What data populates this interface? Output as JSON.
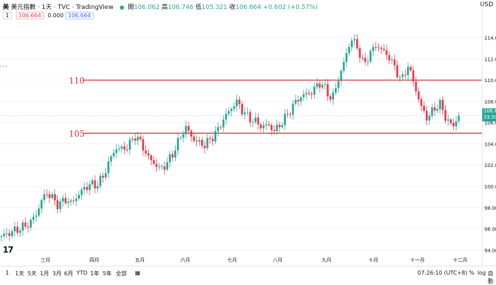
{
  "header": {
    "symbol": "美",
    "title": "美元指數 · 1天 · TVC · TradingView",
    "open_label": "開",
    "open": "106.062",
    "high_label": "高",
    "high": "106.746",
    "low_label": "低",
    "low": "105.321",
    "close_label": "收",
    "close": "106.664",
    "change": "+0.602 (+0.57%)",
    "currency": "USD"
  },
  "indicator": {
    "number": "1",
    "value_a": "106.664",
    "value_b": "0.000",
    "value_c": "106.664"
  },
  "price_tag": {
    "price": "106.6",
    "countdown": "33:50"
  },
  "bottom": {
    "timeframes": [
      "1",
      "1天",
      "5天",
      "1月",
      "3月",
      "6月",
      "YTD",
      "1年",
      "5年",
      "全部"
    ],
    "time": "07:26:10 (UTC+8)",
    "percent": "%",
    "log": "log",
    "auto": "自動"
  },
  "colors": {
    "up": "#26a69a",
    "down": "#f23645",
    "level": "#d32f2f"
  },
  "chart_data": {
    "type": "candlestick",
    "y_ticks": [
      94.0,
      96.0,
      98.0,
      100.0,
      102.0,
      104.0,
      106.0,
      108.0,
      110.0,
      112.0,
      114.0
    ],
    "y_tick_labels": [
      "94.00",
      "96.00",
      "98.00",
      "100.00",
      "102.00",
      "104.00",
      "106.00",
      "108.00",
      "110.00",
      "112.00",
      "114.00"
    ],
    "ylim": [
      93.5,
      115.6
    ],
    "x_tick_labels": [
      "三月",
      "四月",
      "五月",
      "六月",
      "七月",
      "八月",
      "九月",
      "十月",
      "十一月",
      "十二月"
    ],
    "horizontal_levels": [
      {
        "value": 110.0,
        "label": "110"
      },
      {
        "value": 105.0,
        "label": "105"
      }
    ],
    "path": [
      [
        0,
        95.3
      ],
      [
        10,
        95.8
      ],
      [
        18,
        96.2
      ],
      [
        23,
        96.6
      ],
      [
        28,
        97.5
      ],
      [
        32,
        98.8
      ],
      [
        36,
        99.4
      ],
      [
        40,
        98.9
      ],
      [
        45,
        98.2
      ],
      [
        50,
        98.8
      ],
      [
        55,
        98.4
      ],
      [
        60,
        99.1
      ],
      [
        65,
        99.8
      ],
      [
        70,
        100.2
      ],
      [
        75,
        100.1
      ],
      [
        80,
        100.9
      ],
      [
        85,
        102.4
      ],
      [
        90,
        103.6
      ],
      [
        95,
        103.5
      ],
      [
        100,
        103.8
      ],
      [
        105,
        104.8
      ],
      [
        110,
        104.1
      ],
      [
        115,
        102.8
      ],
      [
        120,
        102.2
      ],
      [
        125,
        101.6
      ],
      [
        130,
        102.1
      ],
      [
        135,
        103.1
      ],
      [
        140,
        104.4
      ],
      [
        145,
        105.6
      ],
      [
        150,
        104.6
      ],
      [
        155,
        104.1
      ],
      [
        160,
        103.9
      ],
      [
        165,
        104.5
      ],
      [
        170,
        105.2
      ],
      [
        175,
        106.4
      ],
      [
        180,
        107.2
      ],
      [
        185,
        108.0
      ],
      [
        190,
        107.1
      ],
      [
        195,
        106.4
      ],
      [
        200,
        106.1
      ],
      [
        205,
        105.6
      ],
      [
        210,
        105.8
      ],
      [
        215,
        105.2
      ],
      [
        220,
        105.9
      ],
      [
        225,
        106.7
      ],
      [
        230,
        107.7
      ],
      [
        235,
        108.4
      ],
      [
        240,
        108.7
      ],
      [
        245,
        108.9
      ],
      [
        250,
        109.8
      ],
      [
        255,
        109.2
      ],
      [
        260,
        108.1
      ],
      [
        265,
        110.0
      ],
      [
        270,
        111.8
      ],
      [
        275,
        113.9
      ],
      [
        280,
        113.2
      ],
      [
        285,
        111.4
      ],
      [
        290,
        112.5
      ],
      [
        295,
        113.3
      ],
      [
        300,
        112.8
      ],
      [
        305,
        112.2
      ],
      [
        310,
        111.1
      ],
      [
        315,
        109.9
      ],
      [
        320,
        111.4
      ],
      [
        325,
        109.6
      ],
      [
        330,
        107.6
      ],
      [
        335,
        106.4
      ],
      [
        340,
        107.2
      ],
      [
        345,
        107.8
      ],
      [
        350,
        106.4
      ],
      [
        355,
        105.6
      ],
      [
        360,
        106.66
      ]
    ]
  }
}
